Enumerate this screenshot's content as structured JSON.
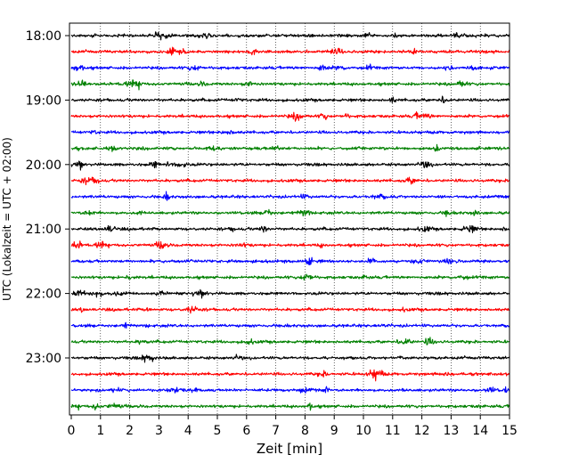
{
  "chart_data": {
    "type": "line",
    "subtype": "helicorder-seismogram",
    "xlabel": "Zeit  [min]",
    "ylabel": "UTC (Lokalzeit = UTC + 02:00)",
    "xlim": [
      0,
      15
    ],
    "x_ticks": [
      "0",
      "1",
      "2",
      "3",
      "4",
      "5",
      "6",
      "7",
      "8",
      "9",
      "10",
      "11",
      "12",
      "13",
      "14",
      "15"
    ],
    "y_tick_labels": [
      "18:00",
      "19:00",
      "20:00",
      "21:00",
      "22:00",
      "23:00"
    ],
    "grid": "vertical dotted at each minute",
    "trace_colors": [
      "#000000",
      "#ff0000",
      "#0000ff",
      "#008000"
    ],
    "traces": [
      {
        "start": "18:00",
        "color": "#000000"
      },
      {
        "start": "18:15",
        "color": "#ff0000"
      },
      {
        "start": "18:30",
        "color": "#0000ff"
      },
      {
        "start": "18:45",
        "color": "#008000"
      },
      {
        "start": "19:00",
        "color": "#000000"
      },
      {
        "start": "19:15",
        "color": "#ff0000"
      },
      {
        "start": "19:30",
        "color": "#0000ff"
      },
      {
        "start": "19:45",
        "color": "#008000"
      },
      {
        "start": "20:00",
        "color": "#000000"
      },
      {
        "start": "20:15",
        "color": "#ff0000"
      },
      {
        "start": "20:30",
        "color": "#0000ff"
      },
      {
        "start": "20:45",
        "color": "#008000"
      },
      {
        "start": "21:00",
        "color": "#000000"
      },
      {
        "start": "21:15",
        "color": "#ff0000"
      },
      {
        "start": "21:30",
        "color": "#0000ff"
      },
      {
        "start": "21:45",
        "color": "#008000"
      },
      {
        "start": "22:00",
        "color": "#000000"
      },
      {
        "start": "22:15",
        "color": "#ff0000"
      },
      {
        "start": "22:30",
        "color": "#0000ff"
      },
      {
        "start": "22:45",
        "color": "#008000"
      },
      {
        "start": "23:00",
        "color": "#000000"
      },
      {
        "start": "23:15",
        "color": "#ff0000"
      },
      {
        "start": "23:30",
        "color": "#0000ff"
      },
      {
        "start": "23:45",
        "color": "#008000"
      }
    ]
  }
}
